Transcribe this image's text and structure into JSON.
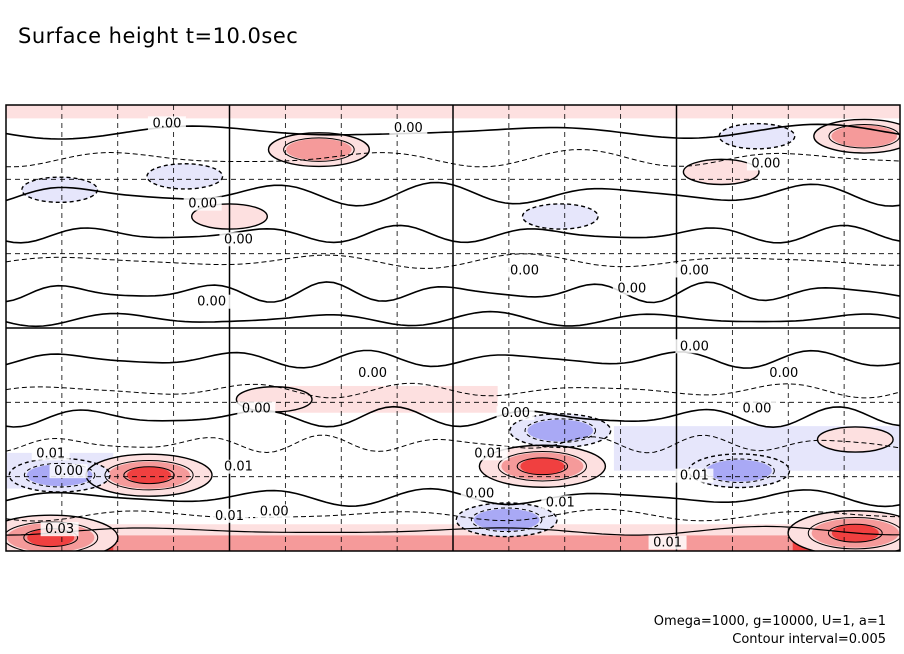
{
  "title": "Surface height t=10.0sec",
  "footer": {
    "params": "Omega=1000, g=10000, U=1, a=1",
    "interval": "Contour interval=0.005"
  },
  "colors": {
    "positive_strong": "#f04040",
    "positive_mid": "#f59a9a",
    "positive_weak": "#fde0e0",
    "negative_strong": "#7a7af0",
    "negative_mid": "#a9a9f5",
    "negative_weak": "#e6e6fb",
    "contour": "#000000",
    "frame": "#000000"
  },
  "chart_data": {
    "type": "heatmap",
    "title": "Surface height t=10.0sec",
    "xlabel": "",
    "ylabel": "",
    "contour_interval": 0.005,
    "negative_contours": "dashed",
    "zero_contour": "thick solid",
    "grid": {
      "major_x_divisions": 4,
      "major_y_divisions": 2,
      "minor_x_per_major": 4,
      "minor_y_per_major": 3
    },
    "contour_labels": [
      "0.00",
      "0.00",
      "0.00",
      "0.00",
      "0.00",
      "0.00",
      "0.00",
      "0.00",
      "0.00",
      "0.00",
      "0.00",
      "0.00",
      "0.00",
      "0.00",
      "0.00",
      "0.01",
      "0.01",
      "0.01",
      "0.01",
      "0.01",
      "0.01",
      "0.01",
      "0.00",
      "0.00",
      "0.00",
      "0.03"
    ],
    "features": [
      {
        "sign": "positive",
        "level": 0.015,
        "lon_frac": 0.16,
        "lat_frac": 0.83
      },
      {
        "sign": "positive",
        "level": 0.015,
        "lon_frac": 0.6,
        "lat_frac": 0.81
      },
      {
        "sign": "positive",
        "level": 0.03,
        "lon_frac": 0.05,
        "lat_frac": 0.97
      },
      {
        "sign": "positive",
        "level": 0.03,
        "lon_frac": 0.95,
        "lat_frac": 0.96
      },
      {
        "sign": "negative",
        "level": -0.01,
        "lon_frac": 0.56,
        "lat_frac": 0.93
      },
      {
        "sign": "negative",
        "level": -0.01,
        "lon_frac": 0.82,
        "lat_frac": 0.82
      },
      {
        "sign": "negative",
        "level": -0.01,
        "lon_frac": 0.62,
        "lat_frac": 0.73
      },
      {
        "sign": "negative",
        "level": -0.01,
        "lon_frac": 0.06,
        "lat_frac": 0.83
      },
      {
        "sign": "negative",
        "level": -0.005,
        "lon_frac": 0.84,
        "lat_frac": 0.07
      },
      {
        "sign": "negative",
        "level": -0.005,
        "lon_frac": 0.06,
        "lat_frac": 0.19
      },
      {
        "sign": "negative",
        "level": -0.005,
        "lon_frac": 0.2,
        "lat_frac": 0.16
      },
      {
        "sign": "negative",
        "level": -0.005,
        "lon_frac": 0.62,
        "lat_frac": 0.25
      },
      {
        "sign": "positive",
        "level": 0.01,
        "lon_frac": 0.35,
        "lat_frac": 0.1
      },
      {
        "sign": "positive",
        "level": 0.01,
        "lon_frac": 0.96,
        "lat_frac": 0.07
      },
      {
        "sign": "positive",
        "level": 0.005,
        "lon_frac": 0.8,
        "lat_frac": 0.15
      },
      {
        "sign": "positive",
        "level": 0.005,
        "lon_frac": 0.25,
        "lat_frac": 0.25
      },
      {
        "sign": "positive",
        "level": 0.005,
        "lon_frac": 0.3,
        "lat_frac": 0.66
      },
      {
        "sign": "positive",
        "level": 0.005,
        "lon_frac": 0.95,
        "lat_frac": 0.75
      }
    ]
  }
}
